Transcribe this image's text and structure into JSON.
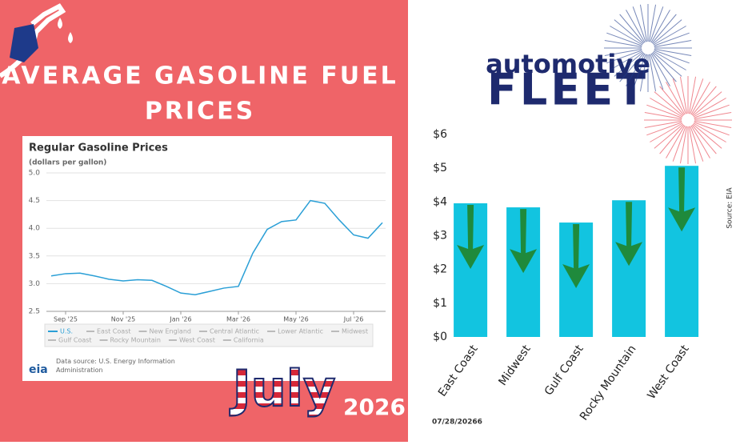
{
  "header": {
    "title_line1": "Average Gasoline Fuel",
    "title_line2": "Prices"
  },
  "badge": {
    "month": "July",
    "year": "2026"
  },
  "logo": {
    "top": "automotive",
    "bottom": "FLEET"
  },
  "date": "07/28/20266",
  "chart_data": [
    {
      "type": "line",
      "title": "Regular Gasoline Prices",
      "subtitle": "(dollars per gallon)",
      "categories": [
        null,
        "Sep '25",
        null,
        null,
        null,
        "Nov '25",
        null,
        null,
        null,
        "Jan '26",
        null,
        null,
        null,
        "Mar '26",
        null,
        null,
        null,
        "May '26",
        null,
        null,
        null,
        "Jul '26",
        null,
        null
      ],
      "series": [
        {
          "name": "U.S.",
          "color": "#2a9fd6",
          "values": [
            3.14,
            3.18,
            3.19,
            3.14,
            3.08,
            3.05,
            3.07,
            3.06,
            2.95,
            2.83,
            2.8,
            2.86,
            2.92,
            2.95,
            3.55,
            3.98,
            4.12,
            4.15,
            4.5,
            4.45,
            4.15,
            3.88,
            3.82,
            4.1
          ]
        }
      ],
      "legend_inactive": [
        "East Coast",
        "New England",
        "Central Atlantic",
        "Lower Atlantic",
        "Midwest",
        "Gulf Coast",
        "Rocky Mountain",
        "West Coast",
        "California"
      ],
      "ylim": [
        2.5,
        5
      ],
      "yticks": [
        2.5,
        {
          "value": 3,
          "label": "3.0"
        },
        3.5,
        {
          "value": 4,
          "label": "4.0"
        },
        4.5,
        {
          "value": 5,
          "label": "5.0"
        }
      ],
      "grid": true,
      "source_logo": "eia",
      "source": "Data source: U.S. Energy Information Administration"
    },
    {
      "type": "bar",
      "categories": [
        "East Coast",
        "Midwest",
        "Gulf Coast",
        "Rocky Mountain",
        "West Coast"
      ],
      "values": [
        3.96,
        3.84,
        3.39,
        4.05,
        5.07
      ],
      "color": "#12c4e0",
      "ylim": [
        0,
        6
      ],
      "yticks": [
        {
          "value": 0,
          "label": "$0"
        },
        {
          "value": 1,
          "label": "$1"
        },
        {
          "value": 2,
          "label": "$2"
        },
        {
          "value": 3,
          "label": "$3"
        },
        {
          "value": 4,
          "label": "$4"
        },
        {
          "value": 5,
          "label": "$5"
        },
        {
          "value": 6,
          "label": "$6"
        }
      ],
      "source": "Source: EIA"
    }
  ]
}
